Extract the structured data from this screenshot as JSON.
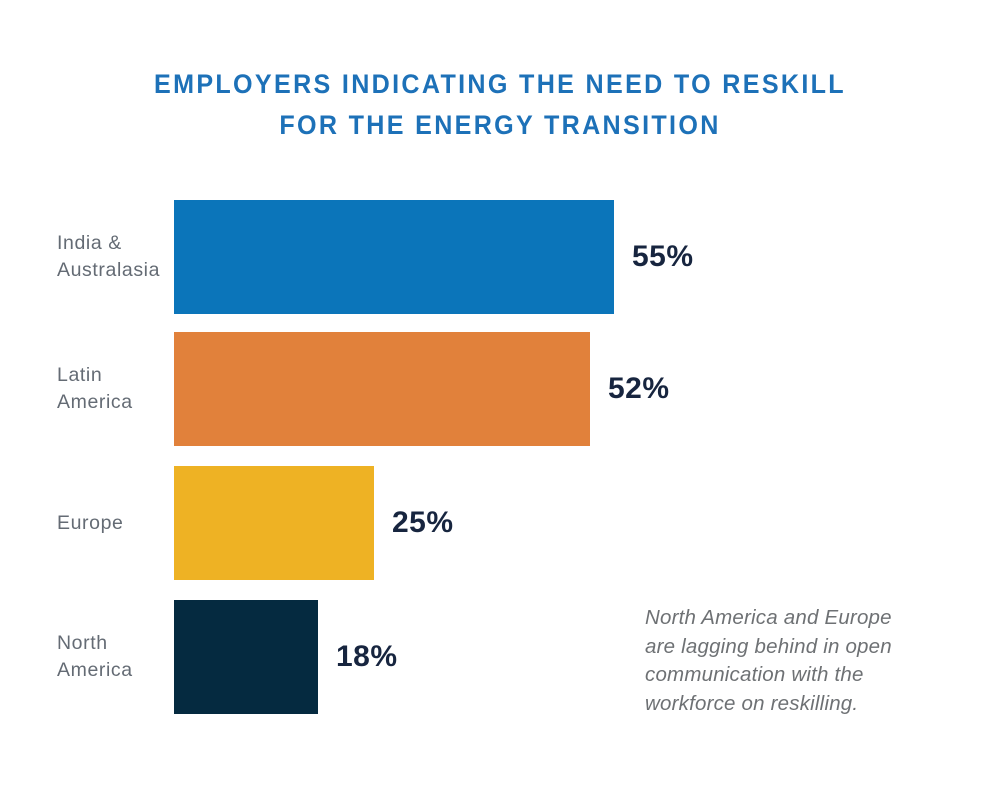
{
  "page": {
    "background": "#ffffff"
  },
  "title": {
    "line1": "EMPLOYERS INDICATING THE NEED TO RESKILL",
    "line2": "FOR THE ENERGY TRANSITION",
    "color": "#1d71b8"
  },
  "annotation": {
    "text": "North America and Europe\nare lagging behind in open\ncommunication with the\nworkforce on reskilling."
  },
  "chart_data": {
    "type": "bar",
    "orientation": "horizontal",
    "title": "EMPLOYERS INDICATING THE NEED TO RESKILL FOR THE ENERGY TRANSITION",
    "unit": "%",
    "xlim": [
      0,
      100
    ],
    "grid": false,
    "legend": false,
    "categories": [
      "India & Australasia",
      "Latin America",
      "Europe",
      "North America"
    ],
    "values": [
      55,
      52,
      25,
      18
    ],
    "bars": [
      {
        "category": "India & Australasia",
        "label": "India &\nAustralasia",
        "value": 55,
        "value_label": "55%",
        "color": "#0b75ba"
      },
      {
        "category": "Latin America",
        "label": "Latin\nAmerica",
        "value": 52,
        "value_label": "52%",
        "color": "#e1813b"
      },
      {
        "category": "Europe",
        "label": "Europe",
        "value": 25,
        "value_label": "25%",
        "color": "#eeb224"
      },
      {
        "category": "North America",
        "label": "North\nAmerica",
        "value": 18,
        "value_label": "18%",
        "color": "#052a40"
      }
    ],
    "annotation": "North America and Europe are lagging behind in open communication with the workforce on reskilling.",
    "colors": {
      "title": "#1d71b8",
      "category_label": "#646b74",
      "value_label": "#17253f",
      "annotation": "#6e7174"
    }
  }
}
